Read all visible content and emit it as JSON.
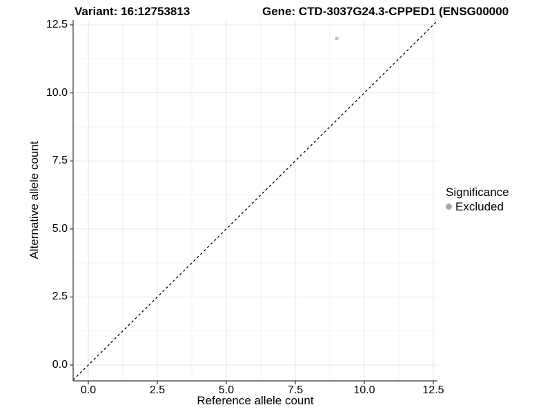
{
  "titles": {
    "variant": "Variant: 16:12753813",
    "gene": "Gene: CTD-3037G24.3-CPPED1 (ENSG00000"
  },
  "colors": {
    "axis_line": "#333333",
    "tick_mark": "#333333",
    "grid_major": "#e6e6e6",
    "grid_minor": "#f1f1f1",
    "reference_line": "#000000",
    "point": "#c2c2c2",
    "legend_key": "#a6a6a6",
    "text": "#000000",
    "background": "#ffffff"
  },
  "chart_data": {
    "type": "scatter",
    "title_left": "Variant: 16:12753813",
    "title_right": "Gene: CTD-3037G24.3-CPPED1 (ENSG00000",
    "xlabel": "Reference allele count",
    "ylabel": "Alternative allele count",
    "x_ticks": [
      0,
      2.5,
      5,
      7.5,
      10,
      12.5
    ],
    "x_tick_labels": [
      "0.0",
      "2.5",
      "5.0",
      "7.5",
      "10.0",
      "12.5"
    ],
    "y_ticks": [
      0,
      2.5,
      5,
      7.5,
      10,
      12.5
    ],
    "y_tick_labels": [
      "0.0",
      "2.5",
      "5.0",
      "7.5",
      "10.0",
      "12.5"
    ],
    "xlim": [
      -0.55,
      12.65
    ],
    "ylim": [
      -0.58,
      12.68
    ],
    "grid": {
      "major": true,
      "minor": true
    },
    "series": [
      {
        "name": "Excluded",
        "color": "#c2c2c2",
        "points": [
          {
            "x": 9,
            "y": 12
          }
        ]
      }
    ],
    "reference_line": {
      "type": "identity",
      "slope": 1,
      "intercept": 0,
      "style": "dashed",
      "color": "#000000"
    },
    "legend": {
      "position": "right",
      "title": "Significance",
      "items": [
        {
          "label": "Excluded",
          "color": "#a6a6a6"
        }
      ]
    }
  }
}
